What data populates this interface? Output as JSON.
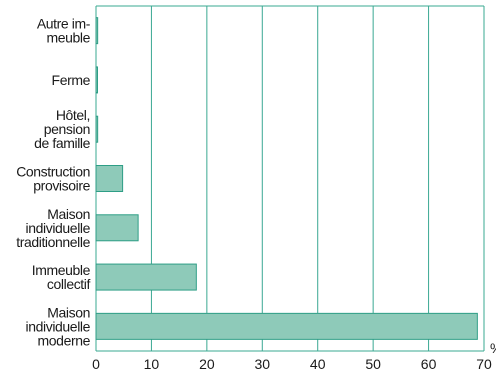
{
  "chart_data": {
    "type": "bar",
    "orientation": "horizontal",
    "title": "",
    "xlabel": "",
    "ylabel": "",
    "unit": "%",
    "categories": [
      [
        "Autre im-",
        "meuble"
      ],
      [
        "Ferme"
      ],
      [
        "Hôtel,",
        "pension",
        "de famille"
      ],
      [
        "Construction",
        "provisoire"
      ],
      [
        "Maison",
        "individuelle",
        "traditionnelle"
      ],
      [
        "Immeuble",
        "collectif"
      ],
      [
        "Maison",
        "individuelle",
        "moderne"
      ]
    ],
    "values": [
      0.3,
      0.2,
      0.3,
      4.8,
      7.6,
      18.1,
      68.8
    ],
    "xlim": [
      0,
      70
    ],
    "xticks": [
      0,
      10,
      20,
      30,
      40,
      50,
      60,
      70
    ],
    "grid": true,
    "colors": {
      "bar_fill": "#8ecab9",
      "bar_stroke": "#2e9e86",
      "grid": "#3aa892",
      "text": "#1a1a1a"
    }
  }
}
